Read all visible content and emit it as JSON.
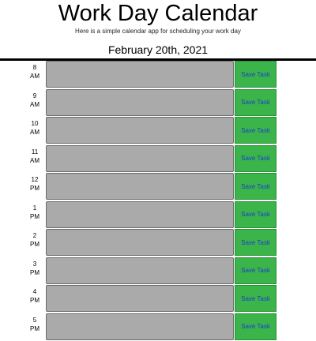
{
  "header": {
    "title": "Work Day Calendar",
    "lead": "Here is a simple calendar app for scheduling your work day",
    "current_day": "February 20th, 2021"
  },
  "rows": [
    {
      "hour": "8",
      "period": "AM",
      "text": "",
      "save_label": "Save Task"
    },
    {
      "hour": "9",
      "period": "AM",
      "text": "",
      "save_label": "Save Task"
    },
    {
      "hour": "10",
      "period": "AM",
      "text": "",
      "save_label": "Save Task"
    },
    {
      "hour": "11",
      "period": "AM",
      "text": "",
      "save_label": "Save Task"
    },
    {
      "hour": "12",
      "period": "PM",
      "text": "",
      "save_label": "Save Task"
    },
    {
      "hour": "1",
      "period": "PM",
      "text": "",
      "save_label": "Save Task"
    },
    {
      "hour": "2",
      "period": "PM",
      "text": "",
      "save_label": "Save Task"
    },
    {
      "hour": "3",
      "period": "PM",
      "text": "",
      "save_label": "Save Task"
    },
    {
      "hour": "4",
      "period": "PM",
      "text": "",
      "save_label": "Save Task"
    },
    {
      "hour": "5",
      "period": "PM",
      "text": "",
      "save_label": "Save Task"
    }
  ],
  "colors": {
    "past_block": "#aaaaaa",
    "save_button": "#3bb44a",
    "save_text": "#1d3fd0"
  }
}
